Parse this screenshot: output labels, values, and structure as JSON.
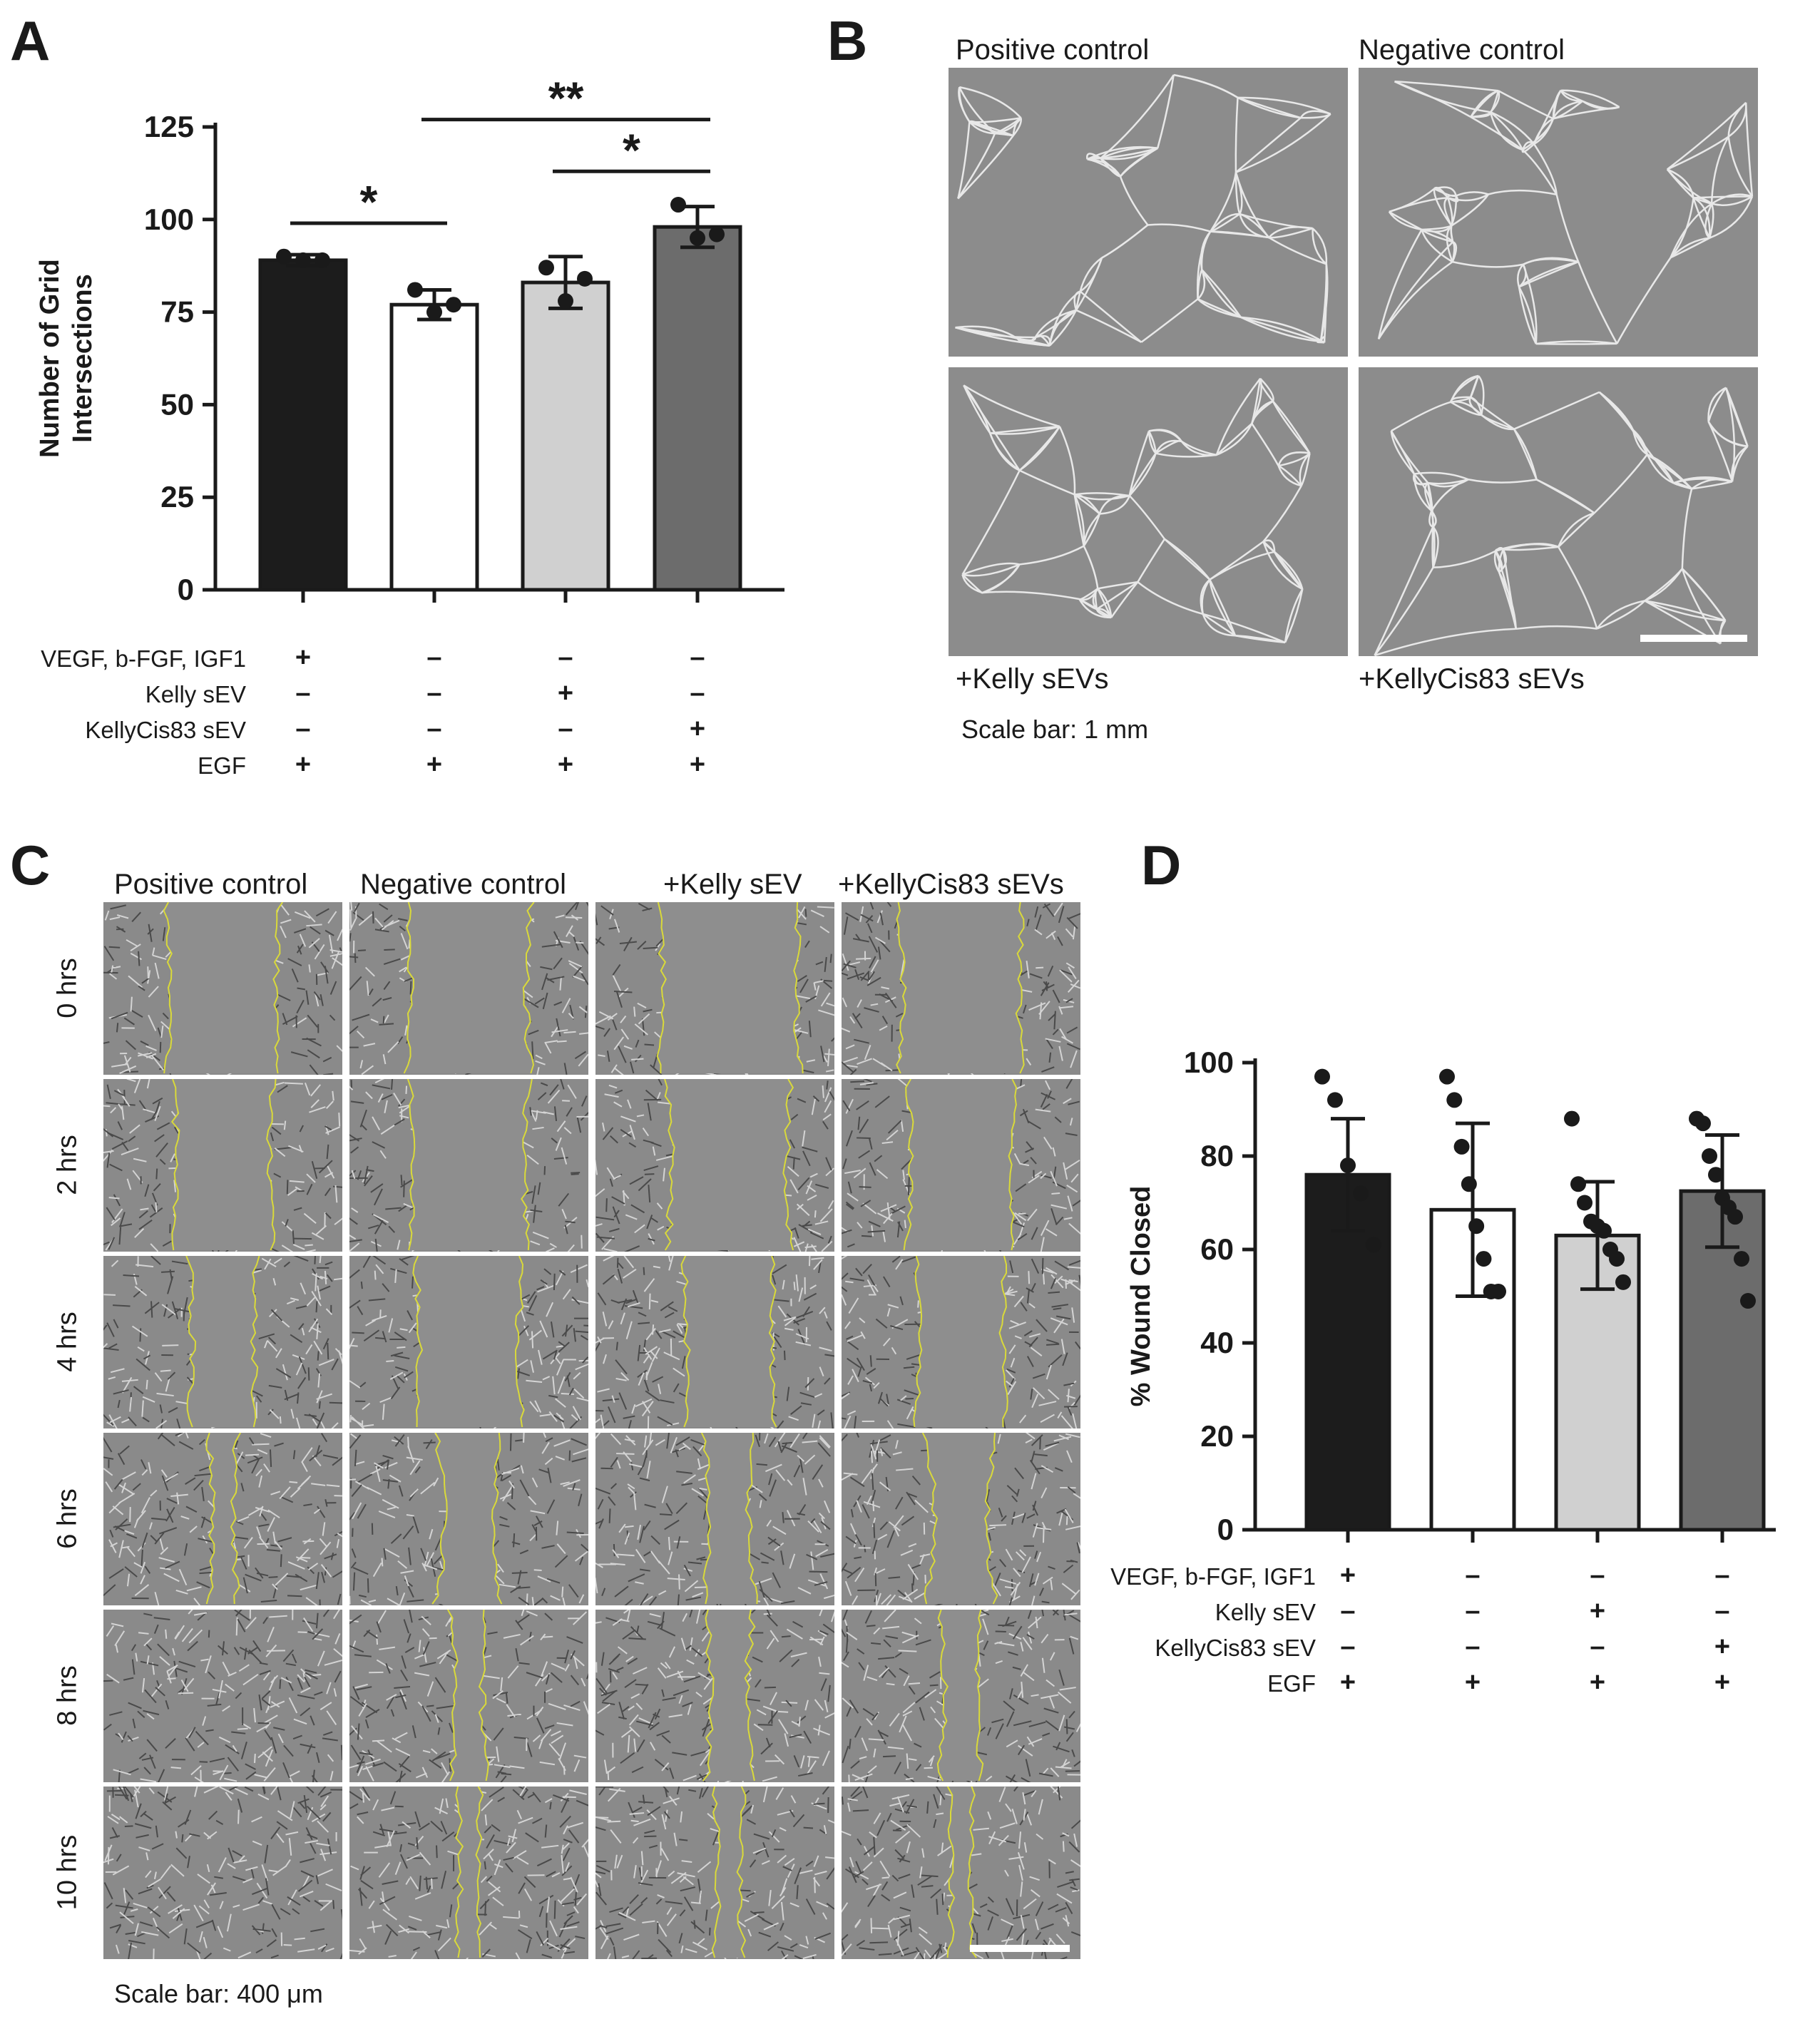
{
  "panels": {
    "a": "A",
    "b": "B",
    "c": "C",
    "d": "D"
  },
  "chart_data": [
    {
      "type": "bar",
      "panel": "A",
      "ylabel_lines": [
        "Number of Grid",
        "Intersections"
      ],
      "yticks": [
        0,
        25,
        50,
        75,
        100,
        125
      ],
      "ylim": [
        0,
        125
      ],
      "categories": [
        "Positive control",
        "Negative control",
        "+Kelly sEV",
        "+KellyCis83 sEV"
      ],
      "values": [
        89,
        77,
        83,
        98
      ],
      "errors": [
        1.5,
        4,
        7,
        5.5
      ],
      "points": [
        [
          90,
          89,
          89
        ],
        [
          81,
          75,
          77
        ],
        [
          87,
          78,
          84
        ],
        [
          104,
          95,
          96
        ]
      ],
      "colors": [
        "#1c1c1c",
        "#ffffff",
        "#d0d0d0",
        "#6c6c6c"
      ],
      "significance": [
        {
          "from": 0,
          "to": 1,
          "label": "*",
          "y": 99
        },
        {
          "from": 1,
          "to": 3,
          "label": "**",
          "y": 127
        },
        {
          "from": 2,
          "to": 3,
          "label": "*",
          "y": 113
        }
      ],
      "conditions": [
        {
          "label": "VEGF, b-FGF, IGF1",
          "marks": [
            "+",
            "–",
            "–",
            "–"
          ]
        },
        {
          "label": "Kelly sEV",
          "marks": [
            "–",
            "–",
            "+",
            "–"
          ]
        },
        {
          "label": "KellyCis83 sEV",
          "marks": [
            "–",
            "–",
            "–",
            "+"
          ]
        },
        {
          "label": "EGF",
          "marks": [
            "+",
            "+",
            "+",
            "+"
          ]
        }
      ]
    },
    {
      "type": "bar",
      "panel": "D",
      "ylabel": "% Wound Closed",
      "yticks": [
        0,
        20,
        40,
        60,
        80,
        100
      ],
      "ylim": [
        0,
        100
      ],
      "categories": [
        "Positive control",
        "Negative control",
        "+Kelly sEV",
        "+KellyCis83 sEV"
      ],
      "values": [
        76,
        68.5,
        63,
        72.5
      ],
      "errors": [
        12,
        18.5,
        11.5,
        12
      ],
      "points": [
        [
          97,
          92,
          78,
          72,
          61
        ],
        [
          97,
          92,
          82,
          74,
          65,
          58,
          51,
          51
        ],
        [
          88,
          74,
          70,
          66,
          65,
          64,
          60,
          58,
          53
        ],
        [
          88,
          87,
          80,
          76,
          71,
          69,
          67,
          58,
          49
        ]
      ],
      "colors": [
        "#1c1c1c",
        "#ffffff",
        "#d0d0d0",
        "#6c6c6c"
      ],
      "conditions": [
        {
          "label": "VEGF, b-FGF, IGF1",
          "marks": [
            "+",
            "–",
            "–",
            "–"
          ]
        },
        {
          "label": "Kelly sEV",
          "marks": [
            "–",
            "–",
            "+",
            "–"
          ]
        },
        {
          "label": "KellyCis83 sEV",
          "marks": [
            "–",
            "–",
            "–",
            "+"
          ]
        },
        {
          "label": "EGF",
          "marks": [
            "+",
            "+",
            "+",
            "+"
          ]
        }
      ]
    }
  ],
  "panel_b": {
    "labels": [
      "Positive control",
      "Negative control",
      "+Kelly sEVs",
      "+KellyCis83 sEVs"
    ],
    "scale": "Scale bar: 1 mm"
  },
  "panel_c": {
    "columns": [
      "Positive control",
      "Negative control",
      "+Kelly sEV",
      "+KellyCis83 sEVs"
    ],
    "rows": [
      "0 hrs",
      "2 hrs",
      "4 hrs",
      "6 hrs",
      "8 hrs",
      "10 hrs"
    ],
    "gap_widths": [
      [
        0.48,
        0.52,
        0.6,
        0.52
      ],
      [
        0.42,
        0.5,
        0.52,
        0.45
      ],
      [
        0.28,
        0.45,
        0.38,
        0.38
      ],
      [
        0.12,
        0.28,
        0.22,
        0.3
      ],
      [
        0.0,
        0.15,
        0.2,
        0.18
      ],
      [
        0.0,
        0.1,
        0.12,
        0.1
      ]
    ],
    "scale": "Scale bar: 400 μm"
  }
}
